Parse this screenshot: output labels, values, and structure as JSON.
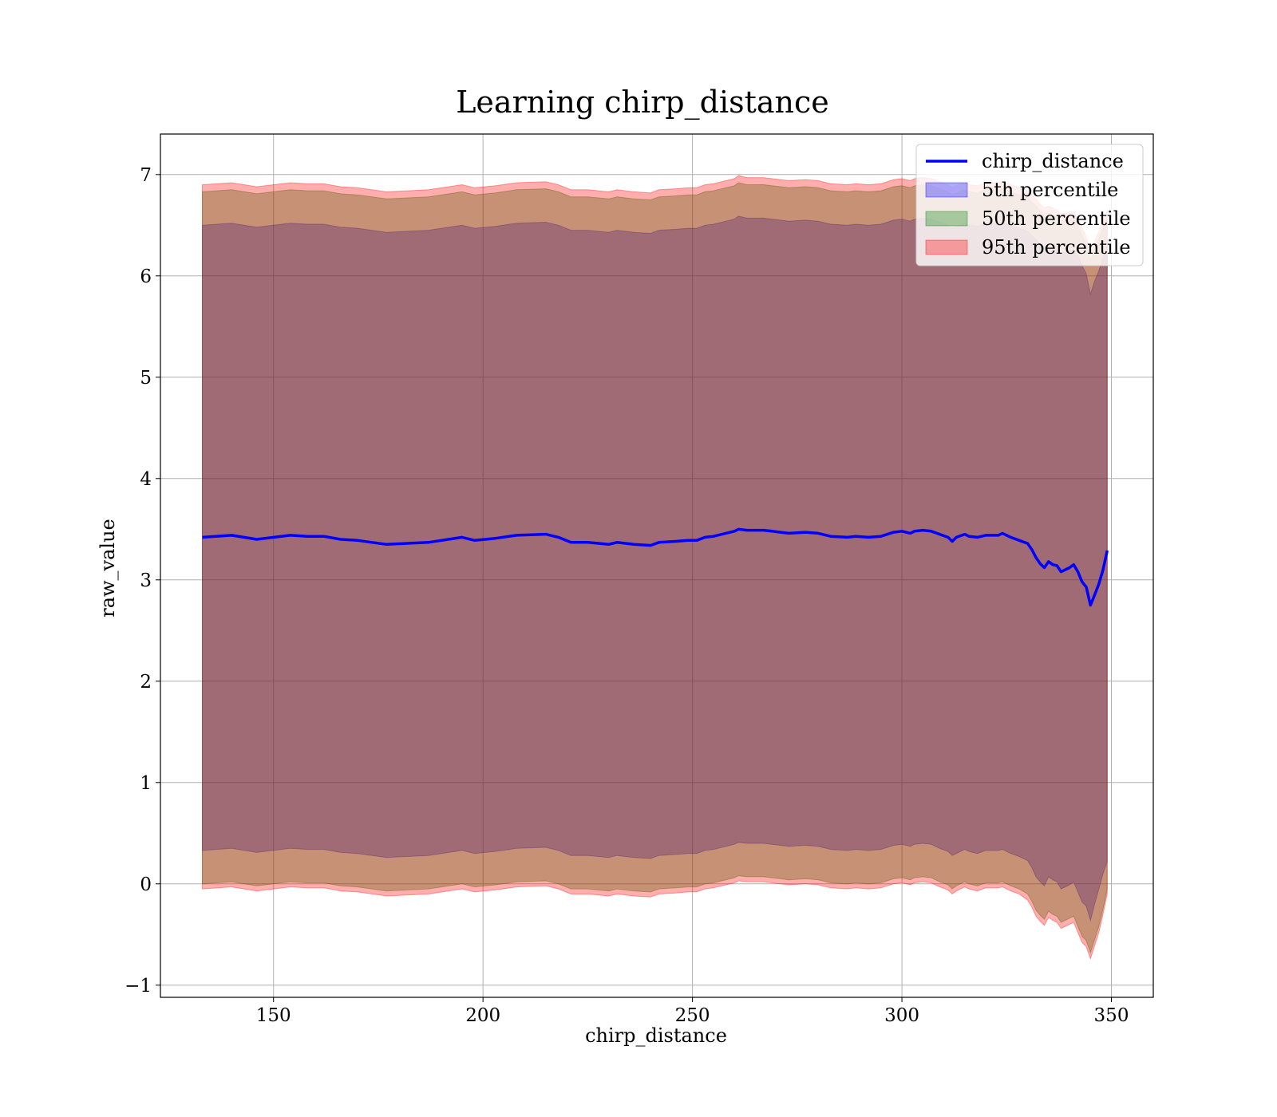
{
  "chart_data": {
    "type": "area",
    "title": "Learning chirp_distance",
    "xlabel": "chirp_distance",
    "ylabel": "raw_value",
    "xlim": [
      123,
      360
    ],
    "ylim": [
      -1.12,
      7.4
    ],
    "xticks": [
      150,
      200,
      250,
      300,
      350
    ],
    "xtick_labels": [
      "150",
      "200",
      "250",
      "300",
      "350"
    ],
    "yticks": [
      -1,
      0,
      1,
      2,
      3,
      4,
      5,
      6,
      7
    ],
    "ytick_labels": [
      "−1",
      "0",
      "1",
      "2",
      "3",
      "4",
      "5",
      "6",
      "7"
    ],
    "grid": true,
    "legend": "top-right",
    "x": [
      133,
      140,
      146,
      154,
      158,
      162,
      166,
      170,
      177,
      187,
      195,
      198,
      203,
      208,
      215,
      218,
      221,
      225,
      230,
      232,
      236,
      240,
      242,
      246,
      249,
      251,
      253,
      255,
      260,
      261,
      263,
      267,
      269,
      271,
      273,
      277,
      280,
      283,
      287,
      289,
      292,
      295,
      298,
      300,
      302,
      303,
      305,
      307,
      309,
      311,
      312,
      313,
      315,
      316,
      318,
      320,
      323,
      324,
      326,
      328,
      330,
      331,
      332,
      333,
      334,
      335,
      336,
      337,
      338,
      339,
      340,
      341,
      342,
      343,
      344,
      345,
      346,
      347,
      348,
      349
    ],
    "series": [
      {
        "name": "chirp_distance",
        "color": "#0000ff",
        "values": [
          3.42,
          3.44,
          3.4,
          3.44,
          3.43,
          3.43,
          3.4,
          3.39,
          3.35,
          3.37,
          3.42,
          3.39,
          3.41,
          3.44,
          3.45,
          3.42,
          3.37,
          3.37,
          3.35,
          3.37,
          3.35,
          3.34,
          3.37,
          3.38,
          3.39,
          3.39,
          3.42,
          3.43,
          3.48,
          3.5,
          3.49,
          3.49,
          3.48,
          3.47,
          3.46,
          3.47,
          3.46,
          3.43,
          3.42,
          3.43,
          3.42,
          3.43,
          3.47,
          3.48,
          3.46,
          3.48,
          3.49,
          3.48,
          3.45,
          3.42,
          3.38,
          3.42,
          3.45,
          3.43,
          3.42,
          3.44,
          3.44,
          3.46,
          3.42,
          3.39,
          3.36,
          3.3,
          3.22,
          3.16,
          3.12,
          3.18,
          3.15,
          3.14,
          3.08,
          3.1,
          3.12,
          3.15,
          3.08,
          2.98,
          2.93,
          2.75,
          2.85,
          2.96,
          3.1,
          3.29
        ]
      },
      {
        "name": "5th percentile",
        "color": "#0000ff",
        "lower": [
          0.33,
          0.35,
          0.31,
          0.35,
          0.34,
          0.34,
          0.31,
          0.3,
          0.26,
          0.28,
          0.33,
          0.3,
          0.32,
          0.35,
          0.36,
          0.33,
          0.28,
          0.28,
          0.26,
          0.28,
          0.26,
          0.25,
          0.28,
          0.29,
          0.3,
          0.3,
          0.33,
          0.34,
          0.39,
          0.41,
          0.4,
          0.4,
          0.39,
          0.38,
          0.37,
          0.38,
          0.37,
          0.34,
          0.33,
          0.34,
          0.33,
          0.34,
          0.38,
          0.39,
          0.37,
          0.39,
          0.4,
          0.39,
          0.35,
          0.32,
          0.28,
          0.3,
          0.34,
          0.32,
          0.3,
          0.33,
          0.33,
          0.34,
          0.3,
          0.27,
          0.23,
          0.16,
          0.07,
          0.02,
          -0.02,
          0.07,
          0.04,
          0.02,
          -0.05,
          -0.03,
          -0.01,
          0.02,
          -0.08,
          -0.18,
          -0.22,
          -0.36,
          -0.2,
          -0.05,
          0.1,
          0.22
        ],
        "upper": [
          6.5,
          6.52,
          6.48,
          6.52,
          6.51,
          6.51,
          6.48,
          6.47,
          6.43,
          6.45,
          6.5,
          6.47,
          6.49,
          6.52,
          6.53,
          6.5,
          6.45,
          6.45,
          6.43,
          6.45,
          6.43,
          6.42,
          6.45,
          6.46,
          6.47,
          6.47,
          6.5,
          6.51,
          6.56,
          6.59,
          6.57,
          6.57,
          6.56,
          6.55,
          6.54,
          6.55,
          6.54,
          6.51,
          6.5,
          6.51,
          6.5,
          6.51,
          6.55,
          6.56,
          6.54,
          6.56,
          6.57,
          6.56,
          6.53,
          6.5,
          6.47,
          6.49,
          6.52,
          6.5,
          6.49,
          6.52,
          6.52,
          6.53,
          6.5,
          6.47,
          6.44,
          6.4,
          6.36,
          6.32,
          6.28,
          6.3,
          6.28,
          6.26,
          6.22,
          6.24,
          6.25,
          6.25,
          6.2,
          6.1,
          6.02,
          5.82,
          5.95,
          6.05,
          6.18,
          6.3
        ]
      },
      {
        "name": "50th percentile",
        "color": "#008000",
        "lower": [
          0.0,
          0.02,
          -0.02,
          0.02,
          0.01,
          0.01,
          -0.02,
          -0.03,
          -0.07,
          -0.05,
          0.0,
          -0.03,
          -0.01,
          0.02,
          0.03,
          0.0,
          -0.05,
          -0.05,
          -0.07,
          -0.05,
          -0.07,
          -0.08,
          -0.05,
          -0.04,
          -0.03,
          -0.03,
          0.0,
          0.01,
          0.06,
          0.08,
          0.07,
          0.07,
          0.06,
          0.05,
          0.04,
          0.05,
          0.04,
          0.01,
          0.0,
          0.01,
          0.0,
          0.01,
          0.05,
          0.06,
          0.04,
          0.06,
          0.07,
          0.06,
          0.02,
          -0.01,
          -0.05,
          -0.02,
          0.02,
          0.0,
          -0.02,
          0.01,
          0.01,
          0.02,
          -0.02,
          -0.05,
          -0.1,
          -0.17,
          -0.26,
          -0.31,
          -0.35,
          -0.27,
          -0.3,
          -0.32,
          -0.38,
          -0.36,
          -0.34,
          -0.32,
          -0.42,
          -0.52,
          -0.56,
          -0.68,
          -0.55,
          -0.42,
          -0.25,
          -0.05
        ],
        "upper": [
          6.83,
          6.85,
          6.81,
          6.85,
          6.84,
          6.84,
          6.81,
          6.8,
          6.76,
          6.78,
          6.83,
          6.8,
          6.82,
          6.85,
          6.86,
          6.83,
          6.78,
          6.78,
          6.76,
          6.78,
          6.76,
          6.75,
          6.78,
          6.79,
          6.8,
          6.8,
          6.83,
          6.84,
          6.89,
          6.92,
          6.9,
          6.9,
          6.89,
          6.88,
          6.87,
          6.88,
          6.87,
          6.84,
          6.83,
          6.84,
          6.83,
          6.84,
          6.88,
          6.89,
          6.87,
          6.89,
          6.9,
          6.89,
          6.86,
          6.83,
          6.8,
          6.82,
          6.85,
          6.83,
          6.82,
          6.85,
          6.85,
          6.86,
          6.83,
          6.8,
          6.77,
          6.73,
          6.69,
          6.64,
          6.6,
          6.62,
          6.6,
          6.58,
          6.54,
          6.55,
          6.56,
          6.56,
          6.5,
          6.4,
          6.32,
          6.15,
          6.27,
          6.37,
          6.48,
          6.58
        ]
      },
      {
        "name": "95th percentile",
        "color": "#ff0000",
        "lower": [
          -0.05,
          -0.03,
          -0.07,
          -0.03,
          -0.04,
          -0.04,
          -0.07,
          -0.08,
          -0.12,
          -0.1,
          -0.05,
          -0.08,
          -0.06,
          -0.03,
          -0.02,
          -0.05,
          -0.1,
          -0.1,
          -0.12,
          -0.1,
          -0.12,
          -0.13,
          -0.1,
          -0.09,
          -0.08,
          -0.08,
          -0.05,
          -0.04,
          0.01,
          0.03,
          0.02,
          0.02,
          0.01,
          0.0,
          -0.01,
          0.0,
          -0.01,
          -0.04,
          -0.05,
          -0.04,
          -0.05,
          -0.04,
          0.0,
          0.01,
          -0.01,
          0.01,
          0.02,
          0.01,
          -0.03,
          -0.06,
          -0.1,
          -0.07,
          -0.03,
          -0.05,
          -0.07,
          -0.04,
          -0.04,
          -0.03,
          -0.07,
          -0.1,
          -0.16,
          -0.23,
          -0.32,
          -0.37,
          -0.41,
          -0.33,
          -0.36,
          -0.38,
          -0.44,
          -0.42,
          -0.4,
          -0.38,
          -0.48,
          -0.58,
          -0.62,
          -0.74,
          -0.61,
          -0.48,
          -0.3,
          -0.1
        ],
        "upper": [
          6.9,
          6.92,
          6.88,
          6.92,
          6.91,
          6.91,
          6.88,
          6.87,
          6.83,
          6.85,
          6.9,
          6.87,
          6.89,
          6.92,
          6.93,
          6.9,
          6.85,
          6.85,
          6.83,
          6.85,
          6.83,
          6.82,
          6.85,
          6.86,
          6.87,
          6.87,
          6.9,
          6.91,
          6.96,
          6.99,
          6.97,
          6.97,
          6.96,
          6.95,
          6.94,
          6.95,
          6.94,
          6.91,
          6.9,
          6.91,
          6.9,
          6.91,
          6.95,
          6.96,
          6.94,
          6.96,
          6.97,
          6.96,
          6.93,
          6.9,
          6.87,
          6.89,
          6.92,
          6.9,
          6.89,
          6.92,
          6.92,
          6.93,
          6.9,
          6.87,
          6.84,
          6.8,
          6.76,
          6.71,
          6.67,
          6.69,
          6.67,
          6.65,
          6.61,
          6.62,
          6.63,
          6.63,
          6.57,
          6.47,
          6.39,
          6.22,
          6.34,
          6.44,
          6.55,
          6.65
        ]
      }
    ]
  }
}
